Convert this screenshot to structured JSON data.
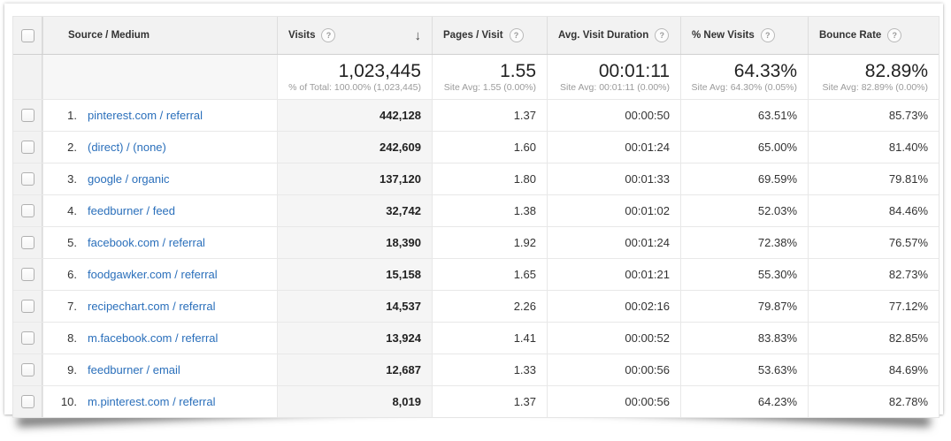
{
  "icons": {
    "help": "?",
    "sort_desc": "↓",
    "checkbox": "checkbox"
  },
  "colors": {
    "link_blue": "#2a6fbb",
    "header_bg": "#f2f2f2",
    "sorted_column_bg": "#f5f5f5",
    "checkbox_column_bg": "#f2f2f2",
    "subtext_gray": "#9a9a9a"
  },
  "table": {
    "columns": [
      {
        "label": "Source / Medium"
      },
      {
        "label": "Visits",
        "sorted": "descending"
      },
      {
        "label": "Pages / Visit"
      },
      {
        "label": "Avg. Visit Duration"
      },
      {
        "label": "% New Visits"
      },
      {
        "label": "Bounce Rate"
      }
    ],
    "summary": {
      "visits": {
        "value": "1,023,445",
        "subtext": "% of Total: 100.00% (1,023,445)"
      },
      "pages_per_visit": {
        "value": "1.55",
        "subtext": "Site Avg: 1.55 (0.00%)"
      },
      "avg_visit_duration": {
        "value": "00:01:11",
        "subtext": "Site Avg: 00:01:11 (0.00%)"
      },
      "pct_new_visits": {
        "value": "64.33%",
        "subtext": "Site Avg: 64.30% (0.05%)"
      },
      "bounce_rate": {
        "value": "82.89%",
        "subtext": "Site Avg: 82.89% (0.00%)"
      }
    },
    "rows": [
      {
        "rank": "1.",
        "source_medium": "pinterest.com / referral",
        "visits": "442,128",
        "pages_per_visit": "1.37",
        "avg_visit_duration": "00:00:50",
        "pct_new_visits": "63.51%",
        "bounce_rate": "85.73%"
      },
      {
        "rank": "2.",
        "source_medium": "(direct) / (none)",
        "visits": "242,609",
        "pages_per_visit": "1.60",
        "avg_visit_duration": "00:01:24",
        "pct_new_visits": "65.00%",
        "bounce_rate": "81.40%"
      },
      {
        "rank": "3.",
        "source_medium": "google / organic",
        "visits": "137,120",
        "pages_per_visit": "1.80",
        "avg_visit_duration": "00:01:33",
        "pct_new_visits": "69.59%",
        "bounce_rate": "79.81%"
      },
      {
        "rank": "4.",
        "source_medium": "feedburner / feed",
        "visits": "32,742",
        "pages_per_visit": "1.38",
        "avg_visit_duration": "00:01:02",
        "pct_new_visits": "52.03%",
        "bounce_rate": "84.46%"
      },
      {
        "rank": "5.",
        "source_medium": "facebook.com / referral",
        "visits": "18,390",
        "pages_per_visit": "1.92",
        "avg_visit_duration": "00:01:24",
        "pct_new_visits": "72.38%",
        "bounce_rate": "76.57%"
      },
      {
        "rank": "6.",
        "source_medium": "foodgawker.com / referral",
        "visits": "15,158",
        "pages_per_visit": "1.65",
        "avg_visit_duration": "00:01:21",
        "pct_new_visits": "55.30%",
        "bounce_rate": "82.73%"
      },
      {
        "rank": "7.",
        "source_medium": "recipechart.com / referral",
        "visits": "14,537",
        "pages_per_visit": "2.26",
        "avg_visit_duration": "00:02:16",
        "pct_new_visits": "79.87%",
        "bounce_rate": "77.12%"
      },
      {
        "rank": "8.",
        "source_medium": "m.facebook.com / referral",
        "visits": "13,924",
        "pages_per_visit": "1.41",
        "avg_visit_duration": "00:00:52",
        "pct_new_visits": "83.83%",
        "bounce_rate": "82.85%"
      },
      {
        "rank": "9.",
        "source_medium": "feedburner / email",
        "visits": "12,687",
        "pages_per_visit": "1.33",
        "avg_visit_duration": "00:00:56",
        "pct_new_visits": "53.63%",
        "bounce_rate": "84.69%"
      },
      {
        "rank": "10.",
        "source_medium": "m.pinterest.com / referral",
        "visits": "8,019",
        "pages_per_visit": "1.37",
        "avg_visit_duration": "00:00:56",
        "pct_new_visits": "64.23%",
        "bounce_rate": "82.78%"
      }
    ]
  }
}
